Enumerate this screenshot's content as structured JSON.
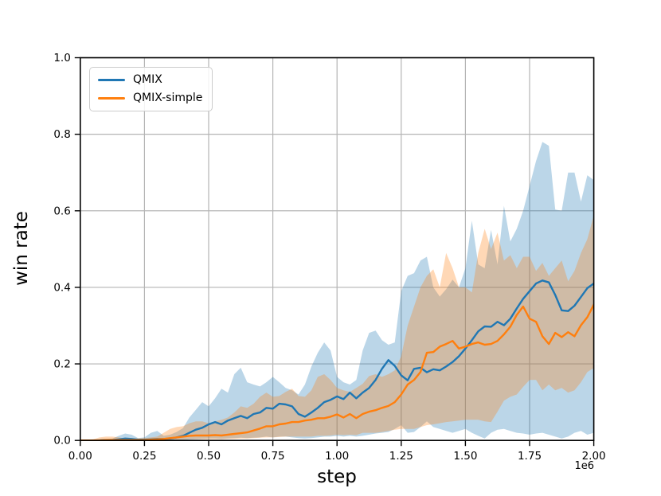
{
  "figure": {
    "xlabel": "step",
    "ylabel": "win rate",
    "offset_text": "1e6",
    "background_color": "#ffffff",
    "grid_color": "#b4b4b4",
    "spine_color": "#000000"
  },
  "legend": {
    "position": "upper left",
    "items": [
      {
        "label": "QMIX",
        "color": "#1f77b4"
      },
      {
        "label": "QMIX-simple",
        "color": "#ff7f0e"
      }
    ]
  },
  "chart_data": {
    "type": "line",
    "title": "",
    "xlabel": "step",
    "ylabel": "win rate",
    "x_units": "1e6 steps",
    "xlim": [
      0,
      2.0
    ],
    "ylim": [
      0.0,
      1.0
    ],
    "grid": true,
    "legend_position": "upper left",
    "xticks": {
      "values": [
        0,
        0.25,
        0.5,
        0.75,
        1.0,
        1.25,
        1.5,
        1.75,
        2.0
      ],
      "labels": [
        "0.00",
        "0.25",
        "0.50",
        "0.75",
        "1.00",
        "1.25",
        "1.50",
        "1.75",
        "2.00"
      ]
    },
    "yticks": {
      "values": [
        0,
        0.2,
        0.4,
        0.6,
        0.8,
        1.0
      ],
      "labels": [
        "0.0",
        "0.2",
        "0.4",
        "0.6",
        "0.8",
        "1.0"
      ]
    },
    "x": [
      0,
      0.025,
      0.05,
      0.075,
      0.1,
      0.125,
      0.15,
      0.175,
      0.2,
      0.225,
      0.25,
      0.275,
      0.3,
      0.325,
      0.35,
      0.375,
      0.4,
      0.425,
      0.45,
      0.475,
      0.5,
      0.525,
      0.55,
      0.575,
      0.6,
      0.625,
      0.65,
      0.675,
      0.7,
      0.725,
      0.75,
      0.775,
      0.8,
      0.825,
      0.85,
      0.875,
      0.9,
      0.925,
      0.95,
      0.975,
      1,
      1.025,
      1.05,
      1.075,
      1.1,
      1.125,
      1.15,
      1.175,
      1.2,
      1.225,
      1.25,
      1.275,
      1.3,
      1.325,
      1.35,
      1.375,
      1.4,
      1.425,
      1.45,
      1.475,
      1.5,
      1.525,
      1.55,
      1.575,
      1.6,
      1.625,
      1.65,
      1.675,
      1.7,
      1.725,
      1.75,
      1.775,
      1.8,
      1.825,
      1.85,
      1.875,
      1.9,
      1.925,
      1.95,
      1.975,
      2
    ],
    "series": [
      {
        "name": "QMIX",
        "color": "#1f77b4",
        "band_alpha": 0.3,
        "mean": [
          0,
          0,
          0,
          0,
          0.001,
          0.001,
          0.003,
          0.005,
          0.004,
          0.002,
          0.002,
          0.003,
          0.004,
          0.004,
          0.005,
          0.008,
          0.012,
          0.02,
          0.028,
          0.033,
          0.042,
          0.048,
          0.042,
          0.052,
          0.058,
          0.064,
          0.058,
          0.069,
          0.073,
          0.085,
          0.083,
          0.096,
          0.094,
          0.089,
          0.069,
          0.062,
          0.073,
          0.085,
          0.1,
          0.106,
          0.115,
          0.108,
          0.125,
          0.11,
          0.125,
          0.137,
          0.158,
          0.187,
          0.21,
          0.195,
          0.17,
          0.157,
          0.187,
          0.19,
          0.178,
          0.186,
          0.183,
          0.193,
          0.205,
          0.22,
          0.24,
          0.262,
          0.285,
          0.298,
          0.297,
          0.31,
          0.301,
          0.318,
          0.345,
          0.37,
          0.39,
          0.41,
          0.418,
          0.413,
          0.38,
          0.34,
          0.338,
          0.352,
          0.375,
          0.398,
          0.41
        ],
        "high": [
          0.002,
          0.002,
          0.002,
          0.003,
          0.004,
          0.005,
          0.012,
          0.018,
          0.015,
          0.006,
          0.008,
          0.02,
          0.025,
          0.012,
          0.015,
          0.022,
          0.032,
          0.06,
          0.08,
          0.1,
          0.089,
          0.11,
          0.135,
          0.125,
          0.173,
          0.19,
          0.152,
          0.146,
          0.141,
          0.152,
          0.166,
          0.152,
          0.137,
          0.131,
          0.12,
          0.146,
          0.193,
          0.229,
          0.256,
          0.235,
          0.166,
          0.152,
          0.146,
          0.158,
          0.235,
          0.281,
          0.287,
          0.262,
          0.25,
          0.256,
          0.39,
          0.43,
          0.437,
          0.47,
          0.48,
          0.4,
          0.376,
          0.395,
          0.42,
          0.4,
          0.45,
          0.574,
          0.46,
          0.45,
          0.55,
          0.46,
          0.613,
          0.52,
          0.553,
          0.6,
          0.665,
          0.73,
          0.78,
          0.77,
          0.603,
          0.6,
          0.7,
          0.7,
          0.624,
          0.693,
          0.68
        ],
        "low": [
          0,
          0,
          0,
          0,
          0,
          0,
          0,
          0,
          0,
          0,
          0,
          0,
          0,
          0,
          0,
          0,
          0,
          0.002,
          0.003,
          0.004,
          0.005,
          0.005,
          0.004,
          0.005,
          0.006,
          0.007,
          0.006,
          0.007,
          0.008,
          0.01,
          0.008,
          0.01,
          0.01,
          0.008,
          0.006,
          0.005,
          0.006,
          0.008,
          0.01,
          0.01,
          0.012,
          0.01,
          0.012,
          0.01,
          0.012,
          0.015,
          0.018,
          0.02,
          0.022,
          0.03,
          0.04,
          0.02,
          0.022,
          0.035,
          0.05,
          0.035,
          0.03,
          0.025,
          0.02,
          0.025,
          0.03,
          0.02,
          0.012,
          0.005,
          0.02,
          0.028,
          0.03,
          0.025,
          0.02,
          0.018,
          0.015,
          0.018,
          0.02,
          0.015,
          0.01,
          0.005,
          0.01,
          0.02,
          0.025,
          0.015,
          0.02
        ]
      },
      {
        "name": "QMIX-simple",
        "color": "#ff7f0e",
        "band_alpha": 0.3,
        "mean": [
          0,
          0,
          0,
          0,
          0.001,
          0.001,
          0.001,
          0.001,
          0.001,
          0.001,
          0.001,
          0.002,
          0.003,
          0.004,
          0.006,
          0.008,
          0.01,
          0.012,
          0.013,
          0.013,
          0.013,
          0.014,
          0.013,
          0.015,
          0.017,
          0.019,
          0.021,
          0.026,
          0.031,
          0.037,
          0.037,
          0.042,
          0.044,
          0.048,
          0.048,
          0.052,
          0.054,
          0.058,
          0.058,
          0.062,
          0.068,
          0.06,
          0.069,
          0.058,
          0.069,
          0.075,
          0.079,
          0.085,
          0.09,
          0.1,
          0.12,
          0.146,
          0.158,
          0.179,
          0.229,
          0.231,
          0.245,
          0.252,
          0.26,
          0.24,
          0.245,
          0.252,
          0.256,
          0.25,
          0.252,
          0.26,
          0.277,
          0.297,
          0.328,
          0.35,
          0.318,
          0.31,
          0.272,
          0.252,
          0.281,
          0.27,
          0.283,
          0.272,
          0.301,
          0.322,
          0.355
        ],
        "high": [
          0.002,
          0.002,
          0.003,
          0.008,
          0.01,
          0.01,
          0.008,
          0.005,
          0.005,
          0.005,
          0.006,
          0.008,
          0.01,
          0.02,
          0.03,
          0.035,
          0.037,
          0.045,
          0.05,
          0.05,
          0.045,
          0.05,
          0.054,
          0.06,
          0.073,
          0.089,
          0.085,
          0.096,
          0.114,
          0.125,
          0.114,
          0.116,
          0.127,
          0.135,
          0.116,
          0.114,
          0.131,
          0.166,
          0.173,
          0.158,
          0.137,
          0.131,
          0.127,
          0.137,
          0.148,
          0.168,
          0.173,
          0.166,
          0.173,
          0.183,
          0.22,
          0.3,
          0.35,
          0.4,
          0.43,
          0.447,
          0.4,
          0.49,
          0.45,
          0.4,
          0.4,
          0.387,
          0.49,
          0.553,
          0.5,
          0.543,
          0.47,
          0.484,
          0.45,
          0.48,
          0.48,
          0.443,
          0.464,
          0.43,
          0.45,
          0.47,
          0.416,
          0.443,
          0.49,
          0.526,
          0.588
        ],
        "low": [
          0,
          0,
          0,
          0,
          0,
          0,
          0,
          0,
          0,
          0,
          0,
          0,
          0,
          0.001,
          0.002,
          0.002,
          0.002,
          0.003,
          0.003,
          0.003,
          0.003,
          0.003,
          0.003,
          0.004,
          0.004,
          0.005,
          0.005,
          0.006,
          0.007,
          0.008,
          0.008,
          0.009,
          0.01,
          0.01,
          0.01,
          0.01,
          0.01,
          0.012,
          0.012,
          0.013,
          0.015,
          0.014,
          0.015,
          0.014,
          0.02,
          0.02,
          0.02,
          0.022,
          0.025,
          0.028,
          0.03,
          0.03,
          0.03,
          0.035,
          0.04,
          0.042,
          0.045,
          0.048,
          0.05,
          0.052,
          0.054,
          0.054,
          0.054,
          0.05,
          0.048,
          0.075,
          0.104,
          0.114,
          0.12,
          0.14,
          0.158,
          0.158,
          0.131,
          0.146,
          0.131,
          0.137,
          0.125,
          0.131,
          0.152,
          0.179,
          0.189
        ]
      }
    ]
  }
}
